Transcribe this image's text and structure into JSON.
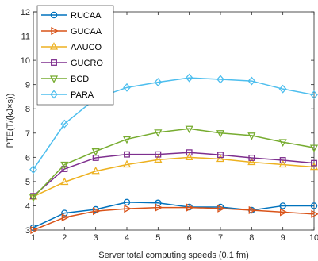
{
  "chart_data": {
    "type": "line",
    "title": "",
    "xlabel": "Server total computing speeds (0.1 fm)",
    "ylabel": "PTE(T/(kJ×s))",
    "xlim": [
      1,
      10
    ],
    "ylim": [
      3,
      12
    ],
    "xticks": [
      1,
      2,
      3,
      4,
      5,
      6,
      7,
      8,
      9,
      10
    ],
    "yticks": [
      3,
      4,
      5,
      6,
      7,
      8,
      9,
      10,
      11,
      12
    ],
    "grid": false,
    "legend_position": "top-left",
    "x": [
      1,
      2,
      3,
      4,
      5,
      6,
      7,
      8,
      9,
      10
    ],
    "series": [
      {
        "name": "RUCAA",
        "color": "#0072BD",
        "marker": "circle",
        "values": [
          3.1,
          3.7,
          3.85,
          4.15,
          4.12,
          3.95,
          3.95,
          3.82,
          4.0,
          4.0
        ]
      },
      {
        "name": "GUCAA",
        "color": "#D95319",
        "marker": "triangle-right",
        "values": [
          3.0,
          3.52,
          3.78,
          3.88,
          3.93,
          3.93,
          3.89,
          3.82,
          3.74,
          3.66
        ]
      },
      {
        "name": "AAUCO",
        "color": "#EDB120",
        "marker": "triangle-up",
        "values": [
          4.38,
          4.98,
          5.43,
          5.7,
          5.9,
          6.0,
          5.93,
          5.8,
          5.7,
          5.6
        ]
      },
      {
        "name": "GUCRO",
        "color": "#7E2F8E",
        "marker": "square",
        "values": [
          4.4,
          5.52,
          5.98,
          6.12,
          6.12,
          6.2,
          6.1,
          5.98,
          5.88,
          5.76
        ]
      },
      {
        "name": "BCD",
        "color": "#77AC30",
        "marker": "triangle-down",
        "values": [
          4.35,
          5.7,
          6.25,
          6.75,
          7.03,
          7.18,
          7.0,
          6.9,
          6.63,
          6.4
        ]
      },
      {
        "name": "PARA",
        "color": "#4DBEEE",
        "marker": "diamond",
        "values": [
          5.5,
          7.38,
          8.43,
          8.88,
          9.1,
          9.28,
          9.22,
          9.15,
          8.82,
          8.58
        ]
      }
    ]
  }
}
